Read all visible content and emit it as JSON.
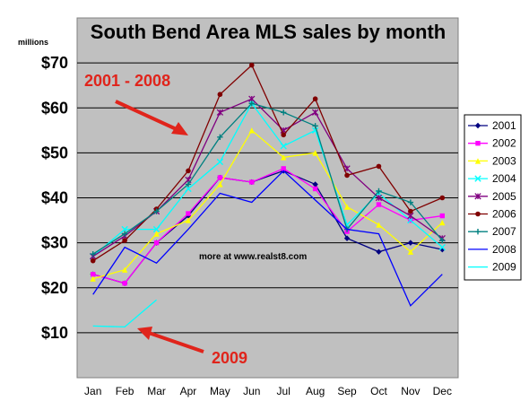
{
  "chart_data": {
    "type": "line",
    "title": "South Bend Area MLS sales by month",
    "yunit_label": "millions",
    "categories": [
      "Jan",
      "Feb",
      "Mar",
      "Apr",
      "May",
      "Jun",
      "Jul",
      "Aug",
      "Sep",
      "Oct",
      "Nov",
      "Dec"
    ],
    "ylim": [
      0,
      80
    ],
    "yticks": [
      10,
      20,
      30,
      40,
      50,
      60,
      70
    ],
    "ytick_labels": [
      "$10",
      "$20",
      "$30",
      "$40",
      "$50",
      "$60",
      "$70"
    ],
    "grid": true,
    "legend_position": "right",
    "plot_background": "#c0c0c0",
    "note": "more at www.realst8.com",
    "annotations": [
      {
        "text": "2001 - 2008",
        "color": "#e0241b"
      },
      {
        "text": "2009",
        "color": "#e0241b"
      }
    ],
    "series": [
      {
        "name": "2001",
        "color": "#000080",
        "marker": "diamond",
        "values": [
          23,
          21,
          30,
          36,
          44.5,
          43.5,
          46,
          43,
          31,
          28,
          30,
          28.5
        ]
      },
      {
        "name": "2002",
        "color": "#ff00ff",
        "marker": "square",
        "values": [
          23,
          21,
          30,
          36.5,
          44.5,
          43.5,
          46.5,
          42,
          32.5,
          38.5,
          35,
          36
        ]
      },
      {
        "name": "2003",
        "color": "#ffff00",
        "marker": "triangle",
        "values": [
          22,
          24,
          32,
          35,
          43,
          55,
          49,
          50,
          38,
          34,
          28,
          34.5
        ]
      },
      {
        "name": "2004",
        "color": "#00ffff",
        "marker": "x",
        "values": [
          27,
          33,
          33,
          42,
          48,
          61,
          51.5,
          55,
          34,
          41,
          35,
          29
        ]
      },
      {
        "name": "2005",
        "color": "#800080",
        "marker": "star",
        "values": [
          27,
          31.5,
          37,
          44,
          59,
          62,
          55,
          59,
          46.5,
          40,
          36,
          31
        ]
      },
      {
        "name": "2006",
        "color": "#800000",
        "marker": "circle",
        "values": [
          26,
          30.5,
          37.5,
          46,
          63,
          69.5,
          54,
          62,
          45,
          47,
          37,
          40
        ]
      },
      {
        "name": "2007",
        "color": "#008080",
        "marker": "plus",
        "values": [
          27.5,
          32,
          37,
          43,
          53.5,
          61,
          59,
          56,
          33,
          41.5,
          39,
          30.5
        ]
      },
      {
        "name": "2008",
        "color": "#0000ff",
        "marker": "none",
        "values": [
          18.5,
          29,
          25.5,
          33,
          41,
          39,
          46,
          39.5,
          33,
          32,
          16,
          23
        ]
      },
      {
        "name": "2009",
        "color": "#00ffff",
        "marker": "none",
        "values": [
          11.5,
          11.3,
          17.3,
          null,
          null,
          null,
          null,
          null,
          null,
          null,
          null,
          null
        ]
      }
    ]
  }
}
